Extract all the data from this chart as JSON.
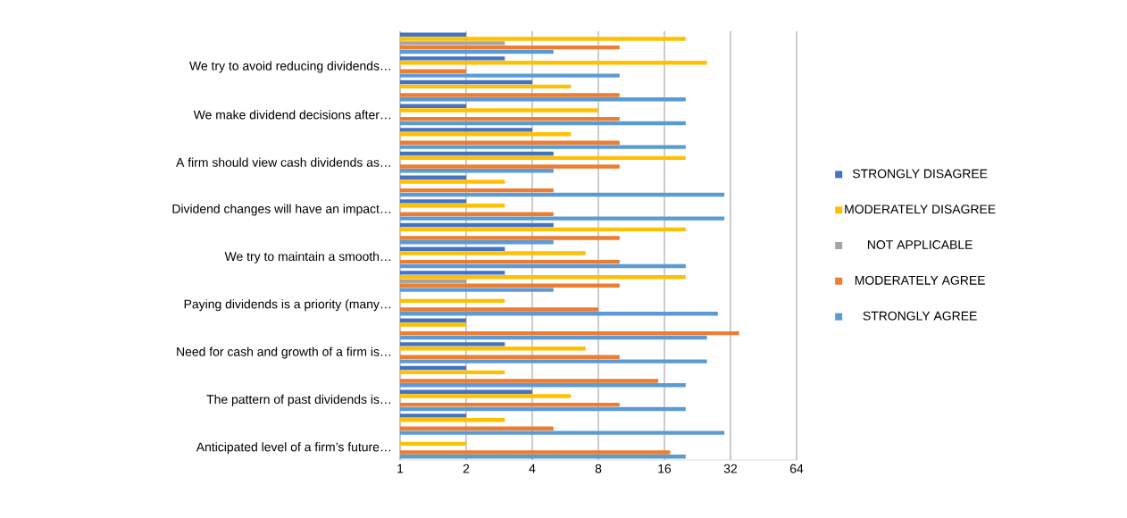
{
  "chart_data": {
    "type": "bar",
    "orientation": "horizontal",
    "log": "x",
    "grid": "x",
    "legend": "right",
    "categories": [
      null,
      "We try to avoid reducing dividends…",
      null,
      "We make dividend decisions after…",
      null,
      "A firm should view cash dividends as…",
      null,
      "Dividend changes will have an impact…",
      null,
      "We try to maintain a smooth…",
      null,
      "Paying dividends is a priority (many…",
      null,
      "Need for cash and growth of a firm is…",
      null,
      "The pattern of past dividends is…",
      null,
      "Anticipated level of a firm’s future…"
    ],
    "series": [
      {
        "name": "STRONGLY DISAGREE",
        "color": "#4472c4",
        "values": [
          2,
          3,
          4,
          2,
          4,
          5,
          2,
          2,
          5,
          3,
          3,
          null,
          2,
          3,
          2,
          4,
          2,
          null
        ]
      },
      {
        "name": "MODERATELY DISAGREE",
        "color": "#ffc000",
        "values": [
          20,
          25,
          6,
          8,
          6,
          20,
          3,
          3,
          20,
          7,
          20,
          3,
          2,
          7,
          3,
          6,
          3,
          2
        ]
      },
      {
        "name": "NOT APPLICABLE",
        "color": "#a5a5a5",
        "values": [
          3,
          null,
          null,
          null,
          null,
          null,
          null,
          null,
          null,
          null,
          2,
          null,
          null,
          null,
          null,
          null,
          null,
          null
        ]
      },
      {
        "name": "MODERATELY AGREE",
        "color": "#ed7d31",
        "values": [
          10,
          2,
          10,
          10,
          10,
          10,
          5,
          5,
          10,
          10,
          10,
          8,
          35,
          10,
          15,
          10,
          5,
          17
        ]
      },
      {
        "name": "STRONGLY AGREE",
        "color": "#5b9bd5",
        "values": [
          5,
          10,
          20,
          20,
          20,
          5,
          30,
          30,
          5,
          20,
          5,
          28,
          25,
          25,
          20,
          20,
          30,
          20
        ]
      }
    ],
    "xlim": [
      1,
      64
    ],
    "xticks": [
      1,
      2,
      4,
      8,
      16,
      32,
      64
    ]
  }
}
